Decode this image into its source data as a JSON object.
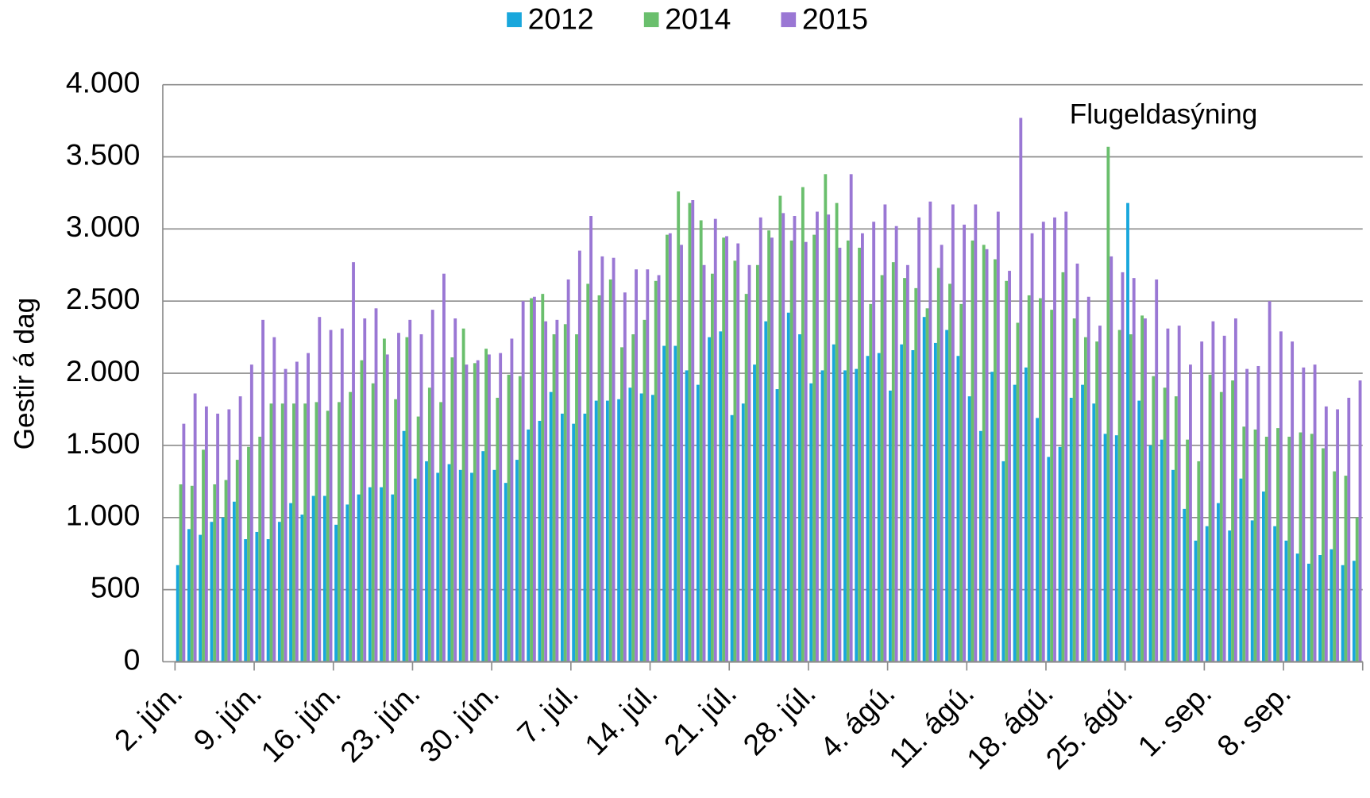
{
  "chart_data": {
    "type": "bar",
    "y_label": "Gestir á dag",
    "annotation": "Flugeldasýning",
    "categories": [
      "2. jún.",
      null,
      null,
      null,
      null,
      null,
      null,
      "9. jún.",
      null,
      null,
      null,
      null,
      null,
      null,
      "16. jún.",
      null,
      null,
      null,
      null,
      null,
      null,
      "23. jún.",
      null,
      null,
      null,
      null,
      null,
      null,
      "30. jún.",
      null,
      null,
      null,
      null,
      null,
      null,
      "7. júl.",
      null,
      null,
      null,
      null,
      null,
      null,
      "14. júl.",
      null,
      null,
      null,
      null,
      null,
      null,
      "21. júl.",
      null,
      null,
      null,
      null,
      null,
      null,
      "28. júl.",
      null,
      null,
      null,
      null,
      null,
      null,
      "4. ágú.",
      null,
      null,
      null,
      null,
      null,
      null,
      "11. ágú.",
      null,
      null,
      null,
      null,
      null,
      null,
      "18. ágú.",
      null,
      null,
      null,
      null,
      null,
      null,
      "25. ágú.",
      null,
      null,
      null,
      null,
      null,
      null,
      "1. sep.",
      null,
      null,
      null,
      null,
      null,
      null,
      "8. sep.",
      null,
      null,
      null,
      null,
      null,
      null
    ],
    "series": [
      {
        "name": "2012",
        "color": "#19a7dc",
        "values": [
          670,
          920,
          880,
          970,
          1000,
          1110,
          850,
          900,
          850,
          970,
          1100,
          1020,
          1150,
          1150,
          950,
          1090,
          1160,
          1210,
          1210,
          1160,
          1600,
          1270,
          1390,
          1310,
          1370,
          1330,
          1310,
          1460,
          1330,
          1240,
          1400,
          1610,
          1670,
          1870,
          1720,
          1650,
          1720,
          1810,
          1810,
          1820,
          1900,
          1860,
          1850,
          2190,
          2190,
          2020,
          1920,
          2250,
          2290,
          1710,
          1790,
          2060,
          2360,
          1890,
          2420,
          2270,
          1930,
          2020,
          2200,
          2020,
          2030,
          2120,
          2140,
          1880,
          2200,
          2160,
          2390,
          2210,
          2300,
          2120,
          1840,
          1600,
          2010,
          1390,
          1920,
          2040,
          1690,
          1420,
          1490,
          1830,
          1920,
          1790,
          1580,
          1570,
          3180,
          1810,
          1500,
          1540,
          1330,
          1060,
          840,
          940,
          1100,
          910,
          1270,
          980,
          1180,
          940,
          840,
          750,
          680,
          740,
          780,
          670,
          700
        ]
      },
      {
        "name": "2014",
        "color": "#6abf6d",
        "values": [
          1230,
          1220,
          1470,
          1230,
          1260,
          1400,
          1490,
          1560,
          1790,
          1790,
          1790,
          1790,
          1800,
          1740,
          1800,
          1870,
          2090,
          1930,
          2240,
          1820,
          2250,
          1700,
          1900,
          1800,
          2110,
          2310,
          2070,
          2170,
          1830,
          1990,
          1980,
          2520,
          2550,
          2270,
          2340,
          2270,
          2620,
          2540,
          2650,
          2180,
          2270,
          2370,
          2640,
          2960,
          3260,
          3180,
          3060,
          2690,
          2940,
          2780,
          2550,
          2750,
          2990,
          3230,
          2920,
          3290,
          2960,
          3380,
          3180,
          2920,
          2870,
          2480,
          2680,
          2770,
          2660,
          2590,
          2450,
          2730,
          2620,
          2480,
          2920,
          2890,
          2790,
          2640,
          2350,
          2540,
          2520,
          2440,
          2700,
          2380,
          2250,
          2220,
          3570,
          2300,
          2270,
          2400,
          1980,
          1900,
          1840,
          1540,
          1390,
          1990,
          1870,
          1950,
          1630,
          1610,
          1560,
          1620,
          1560,
          1590,
          1580,
          1480,
          1320,
          1290,
          1000
        ]
      },
      {
        "name": "2015",
        "color": "#9a77d4",
        "values": [
          1650,
          1860,
          1770,
          1720,
          1750,
          1840,
          2060,
          2370,
          2250,
          2030,
          2080,
          2140,
          2390,
          2300,
          2310,
          2770,
          2380,
          2450,
          2130,
          2280,
          2370,
          2270,
          2440,
          2690,
          2380,
          2060,
          2090,
          2130,
          2140,
          2240,
          2500,
          2530,
          2360,
          2370,
          2650,
          2850,
          3090,
          2810,
          2800,
          2560,
          2720,
          2720,
          2680,
          2970,
          2890,
          3200,
          2750,
          3070,
          2950,
          2900,
          2750,
          3080,
          2940,
          3110,
          3090,
          2910,
          3120,
          3100,
          2870,
          3380,
          2970,
          3050,
          3170,
          3020,
          2750,
          3080,
          3190,
          2890,
          3170,
          3030,
          3170,
          2860,
          3120,
          2710,
          3770,
          2970,
          3050,
          3080,
          3120,
          2760,
          2530,
          2330,
          2810,
          2700,
          2660,
          2380,
          2650,
          2310,
          2330,
          2060,
          2220,
          2360,
          2260,
          2380,
          2030,
          2050,
          2500,
          2290,
          2220,
          2040,
          2060,
          1770,
          1750,
          1830,
          1950
        ]
      }
    ],
    "ylim": [
      0,
      4000
    ],
    "yticks": [
      0,
      500,
      {
        "value": 1000,
        "label": "1.000"
      },
      {
        "value": 1500,
        "label": "1.500"
      },
      {
        "value": 2000,
        "label": "2.000"
      },
      {
        "value": 2500,
        "label": "2.500"
      },
      {
        "value": 3000,
        "label": "3.000"
      },
      {
        "value": 3500,
        "label": "3.500"
      },
      {
        "value": 4000,
        "label": "4.000"
      }
    ],
    "grid": true,
    "legend": "top"
  }
}
